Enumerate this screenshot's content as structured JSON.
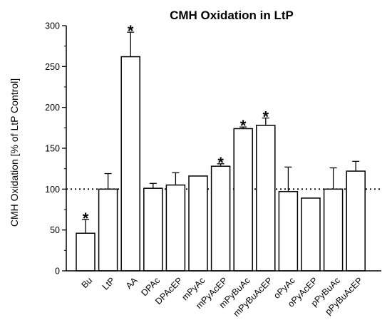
{
  "chart_data": {
    "type": "bar",
    "title": "CMH Oxidation in LtP",
    "ylabel": "CMH Oxidation [% of LtP Control]",
    "xlabel": "",
    "ylim": [
      0,
      300
    ],
    "yticks": [
      0,
      50,
      100,
      150,
      200,
      250,
      300
    ],
    "reference_line": 100,
    "grid": false,
    "categories": [
      "Bu",
      "LtP",
      "AA",
      "DPAc",
      "DPAcEP",
      "mPyAc",
      "mPyAcEP",
      "mPyBuAc",
      "mPyBuAcEP",
      "oPyAc",
      "oPyAcEP",
      "pPyBuAc",
      "pPyBuAcEP"
    ],
    "values": [
      46,
      100,
      262,
      101,
      105,
      116,
      128,
      174,
      178,
      97,
      89,
      100,
      122
    ],
    "errors": [
      17,
      19,
      30,
      6,
      15,
      0,
      3,
      2,
      9,
      30,
      0,
      26,
      12
    ],
    "significance": [
      "*",
      "",
      "*",
      "",
      "",
      "",
      "*",
      "*",
      "*",
      "",
      "",
      "",
      ""
    ],
    "colors": {
      "bar_fill": "#ffffff",
      "stroke": "#000000"
    }
  }
}
